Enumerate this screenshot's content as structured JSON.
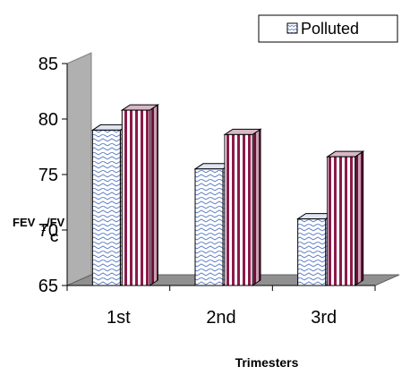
{
  "chart_data": {
    "type": "bar",
    "categories": [
      "1st",
      "2nd",
      "3rd"
    ],
    "series": [
      {
        "name": "Polluted",
        "values": [
          79,
          75.5,
          71
        ],
        "color": "#ffffff",
        "pattern": "blue-zigzag"
      },
      {
        "values": [
          80.8,
          78.6,
          76.6
        ],
        "color": "#8b1a4a",
        "pattern": "vertical-stripes"
      }
    ],
    "ylim": [
      65,
      85
    ],
    "yticks": [
      65,
      70,
      75,
      80,
      85
    ],
    "ylabel": "FEV1/FVC",
    "xlabel": "Trimesters",
    "legend_position": "top-right",
    "grid": false
  },
  "ylabel_parts": {
    "fev": "FEV",
    "sub1": "1",
    "slash": "/FV",
    "c": "C"
  }
}
